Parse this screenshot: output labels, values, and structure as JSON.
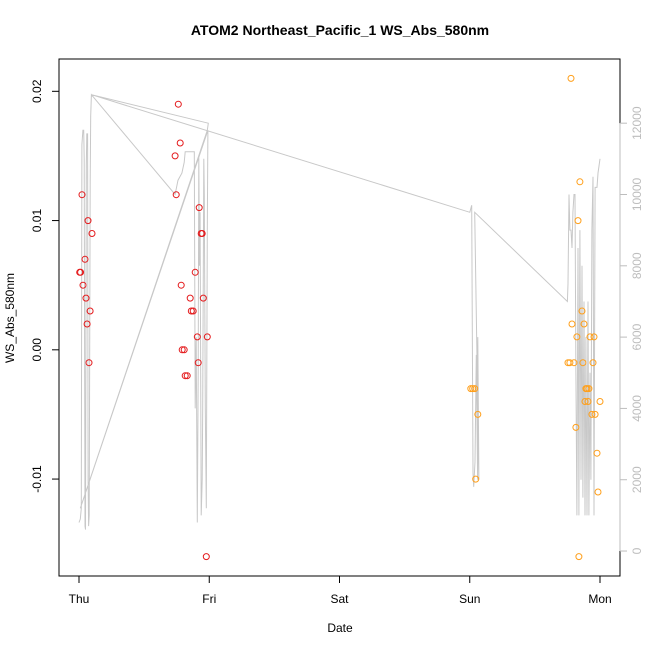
{
  "chart_data": {
    "type": "scatter",
    "title": "ATOM2 Northeast_Pacific_1 WS_Abs_580nm",
    "xlabel": "Date",
    "ylabel": "WS_Abs_580nm",
    "x_unit": "days since Thu 00:00",
    "xlim": [
      0,
      4.0
    ],
    "ylim": [
      -0.0175,
      0.0225
    ],
    "x_ticks": [
      {
        "value": 0,
        "label": "Thu"
      },
      {
        "value": 1,
        "label": "Fri"
      },
      {
        "value": 2,
        "label": "Sat"
      },
      {
        "value": 3,
        "label": "Sun"
      },
      {
        "value": 4,
        "label": "Mon"
      }
    ],
    "y_ticks": [
      {
        "value": -0.01,
        "label": "-0.01"
      },
      {
        "value": 0.0,
        "label": "0.00"
      },
      {
        "value": 0.01,
        "label": "0.01"
      },
      {
        "value": 0.02,
        "label": "0.02"
      }
    ],
    "y2_label": "",
    "y2lim": [
      -700,
      13800
    ],
    "y2_ticks": [
      {
        "value": 0,
        "label": "0"
      },
      {
        "value": 2000,
        "label": "2000"
      },
      {
        "value": 4000,
        "label": "4000"
      },
      {
        "value": 6000,
        "label": "6000"
      },
      {
        "value": 8000,
        "label": "8000"
      },
      {
        "value": 10000,
        "label": "10000"
      },
      {
        "value": 12000,
        "label": "12000"
      }
    ],
    "colors": {
      "red": "#e41a1c",
      "orange": "#ff9f1a",
      "altitude": "#c8c8c8",
      "axis": "#000000",
      "axis_right": "#bdbdbd"
    },
    "series": [
      {
        "name": "red",
        "color": "#e41a1c",
        "points": [
          [
            0.005,
            0.006
          ],
          [
            0.012,
            0.006
          ],
          [
            0.023,
            0.012
          ],
          [
            0.031,
            0.005
          ],
          [
            0.046,
            0.007
          ],
          [
            0.054,
            0.004
          ],
          [
            0.062,
            0.002
          ],
          [
            0.069,
            0.01
          ],
          [
            0.077,
            -0.001
          ],
          [
            0.085,
            0.003
          ],
          [
            0.1,
            0.009
          ],
          [
            0.738,
            0.015
          ],
          [
            0.746,
            0.012
          ],
          [
            0.762,
            0.019
          ],
          [
            0.777,
            0.016
          ],
          [
            0.785,
            0.005
          ],
          [
            0.792,
            0.0
          ],
          [
            0.808,
            0.0
          ],
          [
            0.815,
            -0.002
          ],
          [
            0.831,
            -0.002
          ],
          [
            0.854,
            0.004
          ],
          [
            0.862,
            0.003
          ],
          [
            0.877,
            0.003
          ],
          [
            0.892,
            0.006
          ],
          [
            0.908,
            0.001
          ],
          [
            0.915,
            -0.001
          ],
          [
            0.923,
            0.011
          ],
          [
            0.938,
            0.009
          ],
          [
            0.946,
            0.009
          ],
          [
            0.954,
            0.004
          ],
          [
            0.977,
            -0.016
          ],
          [
            0.985,
            0.001
          ]
        ]
      },
      {
        "name": "orange",
        "color": "#ff9f1a",
        "points": [
          [
            3.008,
            -0.003
          ],
          [
            3.023,
            -0.003
          ],
          [
            3.038,
            -0.003
          ],
          [
            3.046,
            -0.01
          ],
          [
            3.062,
            -0.005
          ],
          [
            3.754,
            -0.001
          ],
          [
            3.769,
            -0.001
          ],
          [
            3.777,
            0.021
          ],
          [
            3.785,
            0.002
          ],
          [
            3.8,
            -0.001
          ],
          [
            3.815,
            -0.006
          ],
          [
            3.823,
            0.001
          ],
          [
            3.831,
            0.01
          ],
          [
            3.838,
            -0.016
          ],
          [
            3.846,
            0.013
          ],
          [
            3.862,
            0.003
          ],
          [
            3.869,
            -0.001
          ],
          [
            3.877,
            0.002
          ],
          [
            3.885,
            -0.004
          ],
          [
            3.892,
            -0.003
          ],
          [
            3.9,
            -0.003
          ],
          [
            3.908,
            -0.004
          ],
          [
            3.915,
            -0.003
          ],
          [
            3.923,
            0.001
          ],
          [
            3.938,
            -0.005
          ],
          [
            3.946,
            -0.001
          ],
          [
            3.954,
            0.001
          ],
          [
            3.962,
            -0.005
          ],
          [
            3.977,
            -0.008
          ],
          [
            3.985,
            -0.011
          ],
          [
            4.0,
            -0.004
          ]
        ]
      }
    ],
    "altitude_line": {
      "name": "altitude",
      "color": "#c8c8c8",
      "points": [
        [
          0.0,
          800
        ],
        [
          0.01,
          900
        ],
        [
          0.018,
          1200
        ],
        [
          0.022,
          11400
        ],
        [
          0.03,
          11800
        ],
        [
          0.036,
          11800
        ],
        [
          0.04,
          11000
        ],
        [
          0.046,
          700
        ],
        [
          0.05,
          600
        ],
        [
          0.056,
          10800
        ],
        [
          0.06,
          11700
        ],
        [
          0.066,
          11700
        ],
        [
          0.07,
          2000
        ],
        [
          0.074,
          700
        ],
        [
          0.078,
          1000
        ],
        [
          0.086,
          10400
        ],
        [
          0.09,
          12200
        ],
        [
          0.095,
          12800
        ],
        [
          0.738,
          10000
        ],
        [
          0.76,
          10400
        ],
        [
          0.79,
          10600
        ],
        [
          0.808,
          10900
        ],
        [
          0.815,
          11200
        ],
        [
          0.85,
          11200
        ],
        [
          0.885,
          11200
        ],
        [
          0.892,
          4000
        ],
        [
          0.9,
          6000
        ],
        [
          0.908,
          800
        ],
        [
          0.915,
          5000
        ],
        [
          0.92,
          11100
        ],
        [
          0.925,
          8000
        ],
        [
          0.93,
          9500
        ],
        [
          0.938,
          1000
        ],
        [
          0.946,
          2000
        ],
        [
          0.95,
          4000
        ],
        [
          0.958,
          11000
        ],
        [
          0.962,
          10000
        ],
        [
          0.97,
          4000
        ],
        [
          0.977,
          1200
        ],
        [
          0.985,
          9000
        ],
        [
          0.99,
          11800
        ],
        [
          0.01,
          1200
        ],
        [
          0.985,
          11800
        ],
        [
          0.993,
          12000
        ],
        [
          0.096,
          12800
        ],
        [
          3.0,
          9500
        ],
        [
          3.015,
          9700
        ],
        [
          3.025,
          2200
        ],
        [
          3.03,
          1800
        ],
        [
          3.04,
          2500
        ],
        [
          3.05,
          5500
        ],
        [
          3.06,
          2000
        ],
        [
          3.062,
          6000
        ],
        [
          3.07,
          2000
        ],
        [
          3.038,
          9500
        ],
        [
          3.75,
          7000
        ],
        [
          3.754,
          7500
        ],
        [
          3.762,
          10000
        ],
        [
          3.769,
          9000
        ],
        [
          3.777,
          9000
        ],
        [
          3.785,
          8500
        ],
        [
          3.792,
          9500
        ],
        [
          3.8,
          10000
        ],
        [
          3.808,
          10000
        ],
        [
          3.815,
          5000
        ],
        [
          3.823,
          1000
        ],
        [
          3.831,
          8500
        ],
        [
          3.838,
          1000
        ],
        [
          3.846,
          9000
        ],
        [
          3.854,
          2000
        ],
        [
          3.862,
          8000
        ],
        [
          3.869,
          1500
        ],
        [
          3.877,
          7000
        ],
        [
          3.885,
          1000
        ],
        [
          3.892,
          6000
        ],
        [
          3.9,
          1000
        ],
        [
          3.908,
          7000
        ],
        [
          3.915,
          1000
        ],
        [
          3.923,
          5000
        ],
        [
          3.93,
          2000
        ],
        [
          3.938,
          9000
        ],
        [
          3.946,
          10500
        ],
        [
          3.954,
          1000
        ],
        [
          3.962,
          10200
        ],
        [
          3.97,
          10200
        ],
        [
          3.977,
          10200
        ],
        [
          3.985,
          10600
        ],
        [
          3.992,
          10800
        ],
        [
          4.0,
          11000
        ]
      ]
    }
  }
}
